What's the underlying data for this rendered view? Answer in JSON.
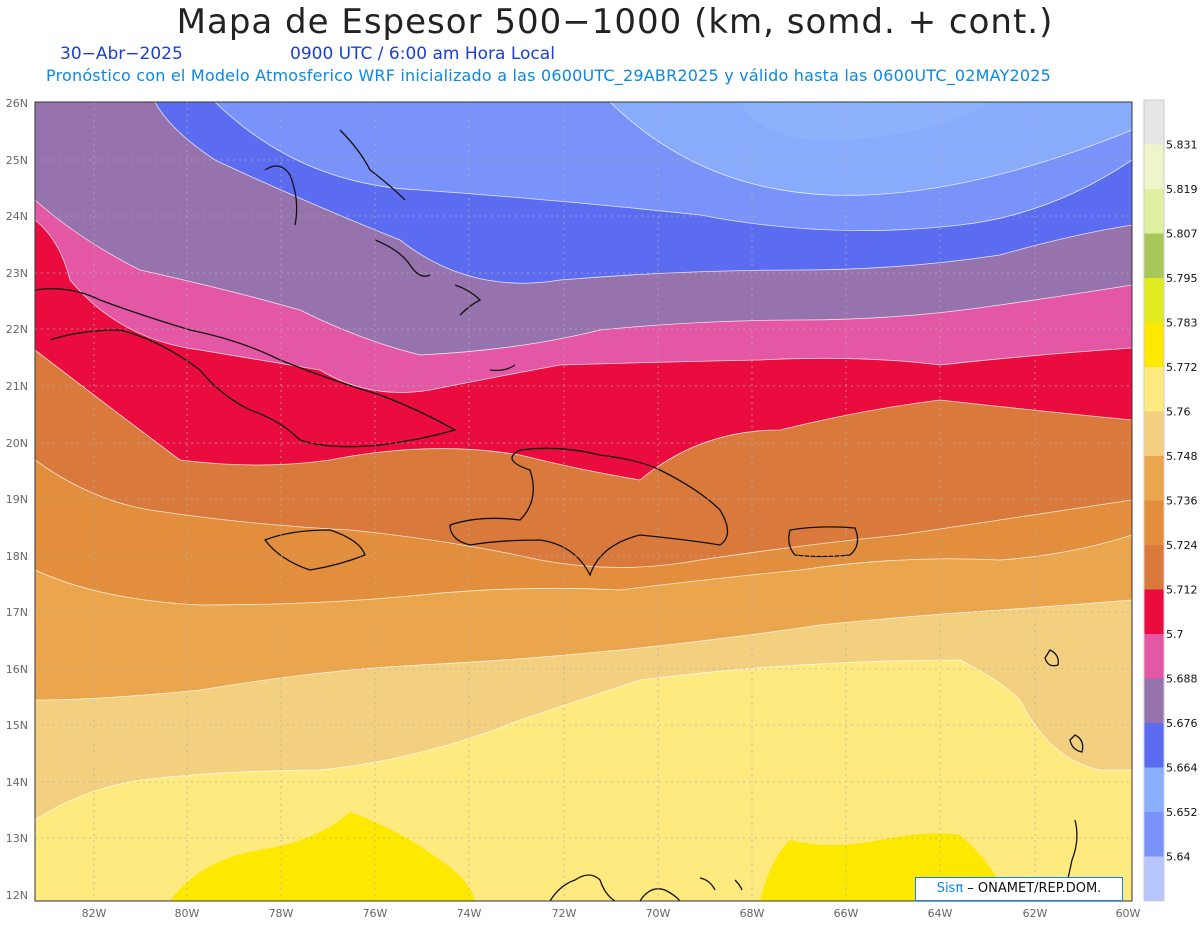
{
  "header": {
    "title": "Mapa de Espesor 500−1000 (km, somd. + cont.)",
    "date": "30−Abr−2025",
    "time": "0900 UTC / 6:00 am Hora Local",
    "model_info": "Pronóstico con el Modelo Atmosferico WRF inicializado a las 0600UTC_29ABR2025 y válido hasta las  0600UTC_02MAY2025"
  },
  "map": {
    "lat_labels": [
      "26N",
      "25N",
      "24N",
      "23N",
      "22N",
      "21N",
      "20N",
      "19N",
      "18N",
      "17N",
      "16N",
      "15N",
      "14N",
      "13N",
      "12N"
    ],
    "lon_labels": [
      "82W",
      "80W",
      "78W",
      "76W",
      "74W",
      "72W",
      "70W",
      "68W",
      "66W",
      "64W",
      "62W",
      "60W"
    ],
    "bands": [
      {
        "level": "5.64",
        "color": "#7a93fb"
      },
      {
        "level": "5.652",
        "color": "#8aaefc"
      },
      {
        "level": "5.664",
        "color": "#5c6cf0"
      },
      {
        "level": "5.676",
        "color": "#9673ad"
      },
      {
        "level": "5.688",
        "color": "#e357a4"
      },
      {
        "level": "5.7",
        "color": "#ea0c3e"
      },
      {
        "level": "5.712",
        "color": "#d97a3c"
      },
      {
        "level": "5.724",
        "color": "#e28e3c"
      },
      {
        "level": "5.736",
        "color": "#eba64d"
      },
      {
        "level": "5.748",
        "color": "#f2d080"
      },
      {
        "level": "5.76",
        "color": "#feea7e"
      },
      {
        "level": "5.772",
        "color": "#fde800"
      }
    ]
  },
  "colorbar": {
    "labels": [
      "5.831",
      "5.819",
      "5.807",
      "5.795",
      "5.783",
      "5.772",
      "5.76",
      "5.748",
      "5.736",
      "5.724",
      "5.712",
      "5.7",
      "5.688",
      "5.676",
      "5.664",
      "5.652",
      "5.64"
    ],
    "colors": [
      "#e6e6e6",
      "#eff5c8",
      "#dff0a0",
      "#a7c758",
      "#dfeb1e",
      "#fde800",
      "#feea7e",
      "#f2d080",
      "#eba64d",
      "#e28e3c",
      "#d97a3c",
      "#ea0c3e",
      "#e357a4",
      "#9673ad",
      "#5c6cf0",
      "#8aaefc",
      "#7a93fb",
      "#b7c7fd"
    ]
  },
  "credit": {
    "brand": "Sisπ",
    "org": " –  ONAMET/REP.DOM."
  }
}
